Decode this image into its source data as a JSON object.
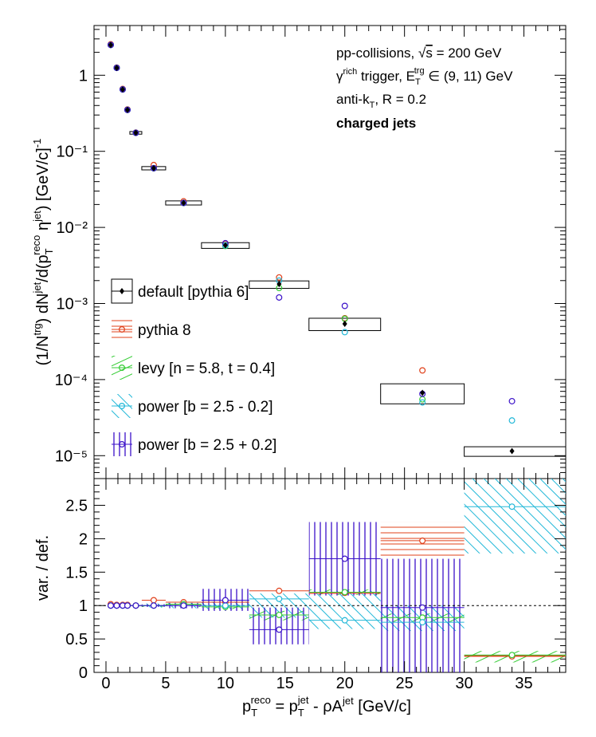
{
  "colors": {
    "default": "#000000",
    "pythia8": "#e0401a",
    "levy": "#33cc33",
    "power_minus": "#22b8d8",
    "power_plus": "#3a10c8"
  },
  "annotations": {
    "line1": "pp-collisions, √s = 200 GeV",
    "line2": "γ^rich trigger, E_T^trg ∈ (9, 11) GeV",
    "line3": "anti-k_T, R = 0.2",
    "line4": "charged jets"
  },
  "chart_data": [
    {
      "type": "scatter",
      "panel": "top",
      "y_scale": "log",
      "xlim": [
        -1,
        38.5
      ],
      "ylim": [
        5e-06,
        4.5
      ],
      "ylabel": "(1/N^trg) dN^jet/d(p_T^reco η^jet) [GeV/c]^-1",
      "y_ticks": [
        "10⁻⁵",
        "10⁻⁴",
        "10⁻³",
        "10⁻²",
        "10⁻¹",
        "1"
      ],
      "x_ticks": [
        "0",
        "5",
        "10",
        "15",
        "20",
        "25",
        "30",
        "35"
      ],
      "legend_position": "left-middle",
      "default": {
        "name": "default [pythia 6]",
        "x": [
          0.4,
          0.9,
          1.4,
          1.8,
          2.5,
          4.0,
          6.5,
          10.0,
          14.5,
          20.0,
          26.5,
          34.0
        ],
        "y": [
          2.5,
          1.25,
          0.65,
          0.35,
          0.175,
          0.06,
          0.021,
          0.0058,
          0.0018,
          0.00054,
          6.7e-05,
          1.15e-05
        ],
        "xlo": [
          0.2,
          0.7,
          1.2,
          1.6,
          2.0,
          3.0,
          5.0,
          8.0,
          12.0,
          17.0,
          23.0,
          30.0
        ],
        "xhi": [
          0.6,
          1.1,
          1.6,
          2.0,
          3.0,
          5.0,
          8.0,
          12.0,
          17.0,
          23.0,
          30.0,
          38.5
        ],
        "syslo": [
          2.42,
          1.21,
          0.63,
          0.34,
          0.168,
          0.057,
          0.0197,
          0.0053,
          0.00158,
          0.00044,
          4.8e-05,
          9.8e-06
        ],
        "syshi": [
          2.58,
          1.29,
          0.67,
          0.36,
          0.182,
          0.063,
          0.0223,
          0.0063,
          0.00198,
          0.00064,
          8.8e-05,
          1.31e-05
        ]
      },
      "series": [
        {
          "name": "pythia 8",
          "x": [
            0.4,
            0.9,
            1.4,
            1.8,
            2.5,
            4.0,
            6.5,
            10.0,
            14.5,
            20.0,
            26.5,
            34.0
          ],
          "y": [
            2.55,
            1.26,
            0.66,
            0.355,
            0.176,
            0.066,
            0.022,
            0.0061,
            0.0022,
            0.00064,
            0.000132,
            null
          ]
        },
        {
          "name": "levy [n = 5.8, t = 0.4]",
          "x": [
            0.4,
            0.9,
            1.4,
            1.8,
            2.5,
            4.0,
            6.5,
            10.0,
            14.5,
            20.0,
            26.5,
            34.0
          ],
          "y": [
            2.5,
            1.25,
            0.65,
            0.35,
            0.175,
            0.06,
            0.021,
            0.0057,
            0.0016,
            0.00063,
            5.5e-05,
            null
          ]
        },
        {
          "name": "power [b = 2.5 - 0.2]",
          "x": [
            0.4,
            0.9,
            1.4,
            1.8,
            2.5,
            4.0,
            6.5,
            10.0,
            14.5,
            20.0,
            26.5,
            34.0
          ],
          "y": [
            2.5,
            1.25,
            0.65,
            0.35,
            0.175,
            0.06,
            0.021,
            0.0058,
            0.002,
            0.00042,
            5e-05,
            2.9e-05
          ]
        },
        {
          "name": "power [b = 2.5 + 0.2]",
          "x": [
            0.4,
            0.9,
            1.4,
            1.8,
            2.5,
            4.0,
            6.5,
            10.0,
            14.5,
            20.0,
            26.5,
            34.0
          ],
          "y": [
            2.5,
            1.25,
            0.65,
            0.35,
            0.175,
            0.06,
            0.021,
            0.0062,
            0.0012,
            0.00093,
            6.5e-05,
            5.2e-05
          ]
        }
      ]
    },
    {
      "type": "scatter",
      "panel": "bottom",
      "xlim": [
        -1,
        38.5
      ],
      "ylim": [
        0,
        2.9
      ],
      "xlabel": "p_T^reco = p_T^jet - ρA^jet [GeV/c]",
      "ylabel": "var. / def.",
      "reference_line": 1,
      "y_ticks": [
        "0",
        "0.5",
        "1",
        "1.5",
        "2",
        "2.5"
      ],
      "x_ticks": [
        "0",
        "5",
        "10",
        "15",
        "20",
        "25",
        "30",
        "35"
      ],
      "bins": [
        [
          0.2,
          0.6
        ],
        [
          0.7,
          1.1
        ],
        [
          1.2,
          1.6
        ],
        [
          1.6,
          2.0
        ],
        [
          2.0,
          3.0
        ],
        [
          3.0,
          5.0
        ],
        [
          5.0,
          8.0
        ],
        [
          8.0,
          12.0
        ],
        [
          12.0,
          17.0
        ],
        [
          17.0,
          23.0
        ],
        [
          23.0,
          30.0
        ],
        [
          30.0,
          38.5
        ]
      ],
      "series": [
        {
          "name": "pythia 8",
          "x": [
            0.4,
            0.9,
            1.4,
            1.8,
            2.5,
            4.0,
            6.5,
            10.0,
            14.5,
            20.0,
            26.5,
            34.0
          ],
          "y": [
            1.02,
            1.01,
            1.01,
            1.01,
            1.0,
            1.08,
            1.05,
            1.05,
            1.22,
            1.19,
            1.97,
            0.24
          ],
          "band": [
            [
              1.0,
              1.0
            ],
            [
              1.0,
              1.0
            ],
            [
              1.0,
              1.0
            ],
            [
              1.0,
              1.0
            ],
            [
              1.0,
              1.0
            ],
            [
              1.0,
              1.0
            ],
            [
              1.0,
              1.06
            ],
            [
              1.0,
              1.0
            ],
            [
              1.18,
              1.2
            ],
            [
              1.17,
              1.2
            ],
            [
              1.72,
              2.25
            ],
            [
              0.22,
              0.28
            ]
          ]
        },
        {
          "name": "levy [n = 5.8, t = 0.4]",
          "x": [
            0.4,
            0.9,
            1.4,
            1.8,
            2.5,
            4.0,
            6.5,
            10.0,
            14.5,
            20.0,
            26.5,
            34.0
          ],
          "y": [
            1.0,
            1.0,
            1.0,
            1.0,
            1.0,
            1.0,
            1.02,
            0.98,
            0.86,
            1.2,
            0.82,
            0.26
          ],
          "band": [
            [
              0.98,
              1.0
            ],
            [
              0.98,
              1.0
            ],
            [
              0.98,
              1.0
            ],
            [
              0.98,
              1.0
            ],
            [
              0.98,
              1.0
            ],
            [
              0.98,
              1.0
            ],
            [
              0.98,
              1.02
            ],
            [
              0.95,
              1.0
            ],
            [
              0.78,
              0.92
            ],
            [
              1.16,
              1.24
            ],
            [
              0.75,
              0.88
            ],
            [
              0.15,
              0.32
            ]
          ]
        },
        {
          "name": "power [b = 2.5 - 0.2]",
          "x": [
            0.4,
            0.9,
            1.4,
            1.8,
            2.5,
            4.0,
            6.5,
            10.0,
            14.5,
            20.0,
            26.5,
            34.0
          ],
          "y": [
            1.0,
            1.0,
            1.0,
            1.0,
            1.0,
            1.0,
            1.0,
            1.0,
            1.1,
            0.78,
            0.75,
            2.48
          ],
          "band": [
            [
              0.98,
              1.02
            ],
            [
              0.98,
              1.02
            ],
            [
              0.98,
              1.02
            ],
            [
              0.98,
              1.02
            ],
            [
              0.98,
              1.02
            ],
            [
              0.97,
              1.03
            ],
            [
              0.96,
              1.04
            ],
            [
              0.94,
              1.06
            ],
            [
              0.82,
              1.18
            ],
            [
              0.65,
              1.22
            ],
            [
              0.62,
              1.0
            ],
            [
              1.78,
              2.9
            ]
          ]
        },
        {
          "name": "power [b = 2.5 + 0.2]",
          "x": [
            0.4,
            0.9,
            1.4,
            1.8,
            2.5,
            4.0,
            6.5,
            10.0,
            14.5,
            20.0,
            26.5,
            34.0
          ],
          "y": [
            1.0,
            1.0,
            1.0,
            1.0,
            1.0,
            1.0,
            1.0,
            1.08,
            0.64,
            1.7,
            0.97,
            null
          ],
          "band": [
            [
              0.99,
              1.01
            ],
            [
              0.99,
              1.01
            ],
            [
              0.99,
              1.01
            ],
            [
              0.99,
              1.01
            ],
            [
              0.99,
              1.01
            ],
            [
              0.98,
              1.02
            ],
            [
              0.96,
              1.04
            ],
            [
              0.92,
              1.25
            ],
            [
              0.42,
              0.97
            ],
            [
              1.15,
              2.25
            ],
            [
              0.0,
              1.7
            ],
            null
          ]
        }
      ]
    }
  ]
}
